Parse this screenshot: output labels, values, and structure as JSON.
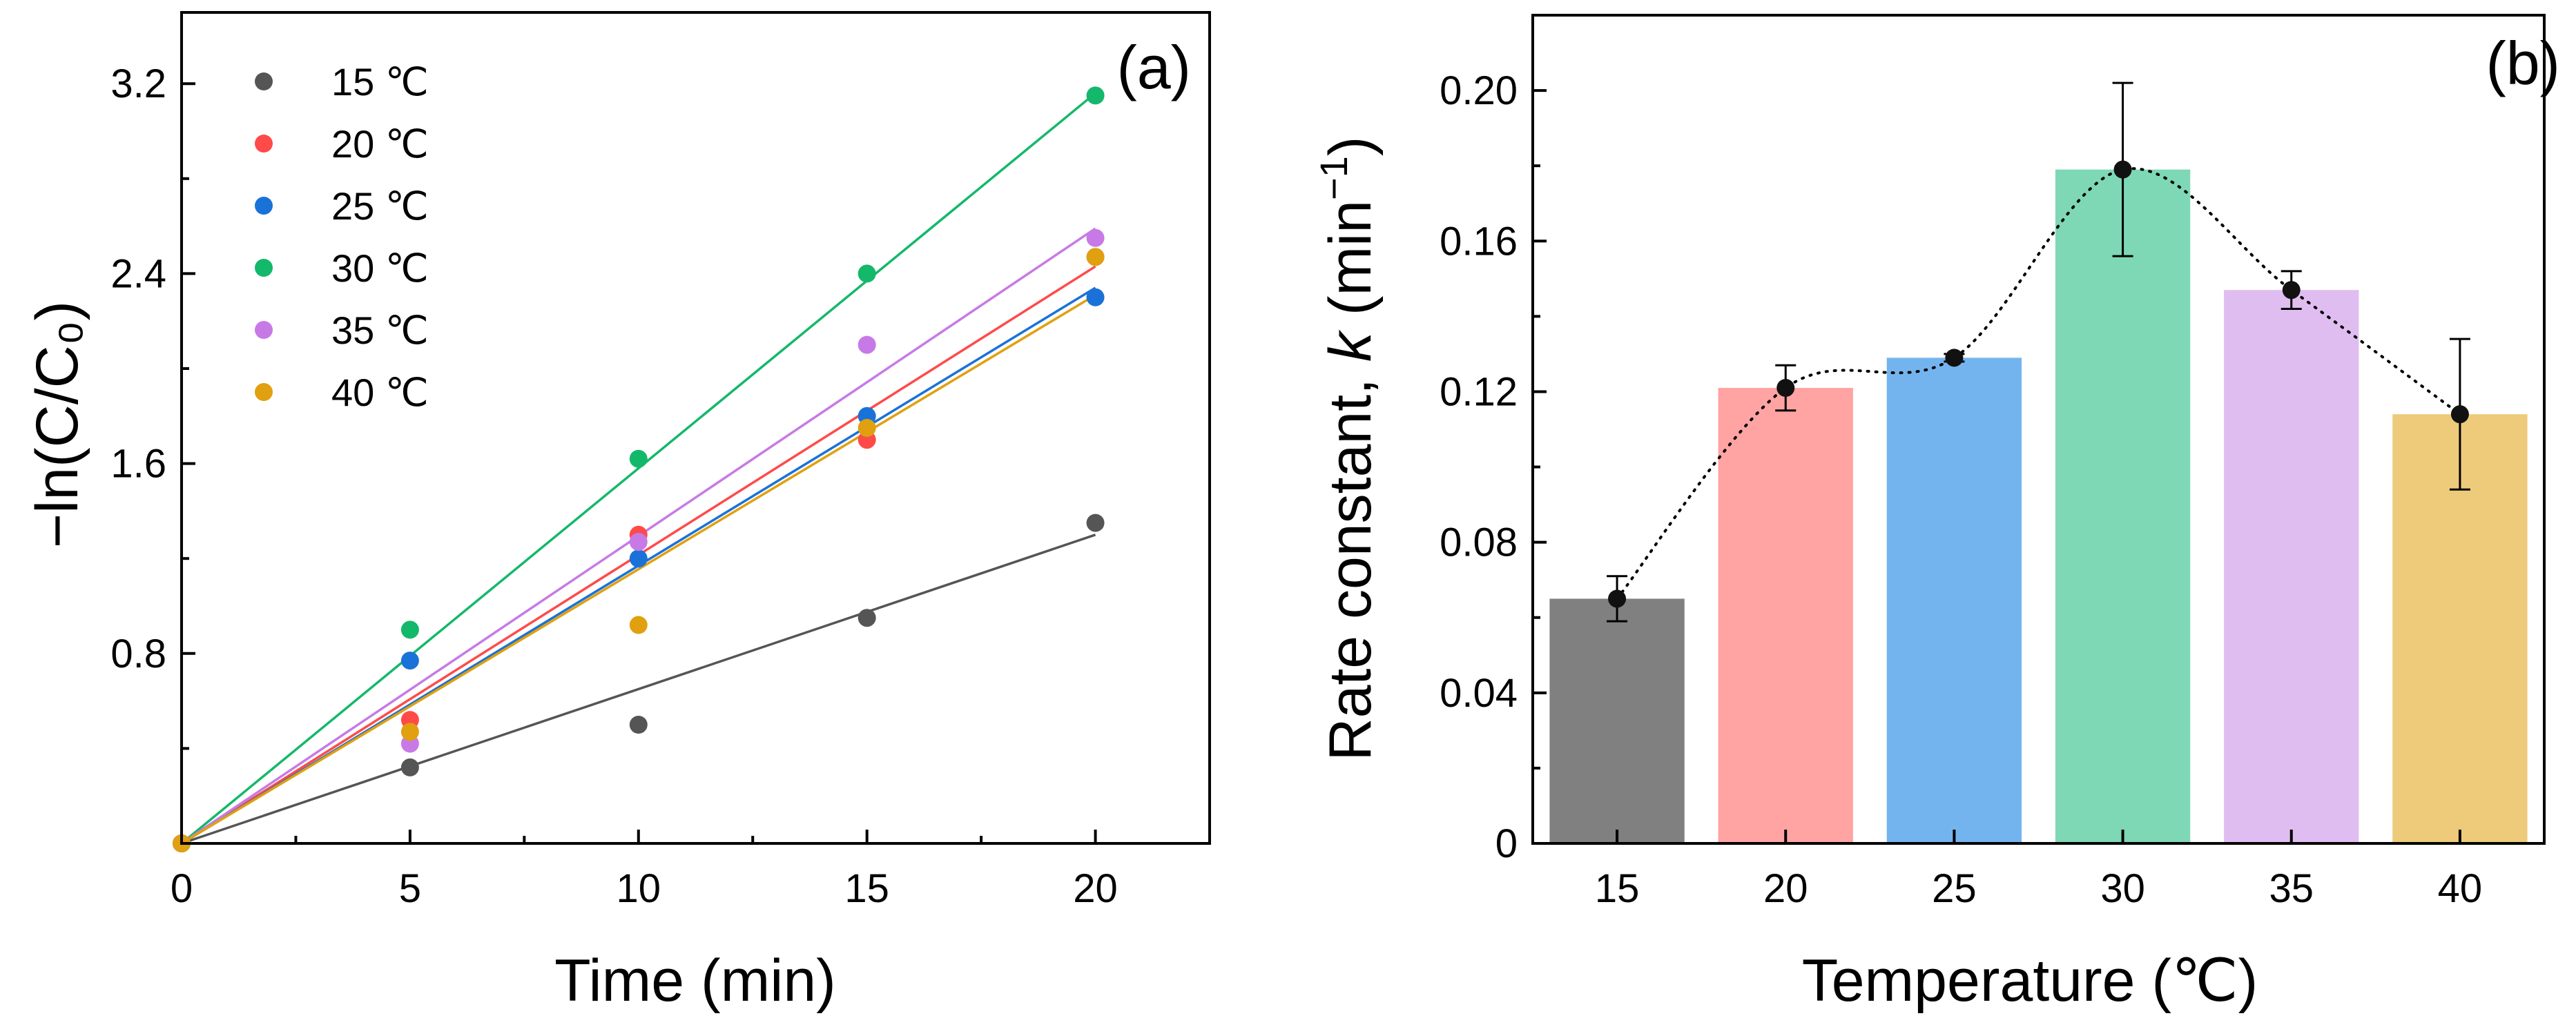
{
  "chart_data": [
    {
      "panel": "(a)",
      "type": "scatter",
      "xlabel": "Time (min)",
      "ylabel": "−ln(C/C₀)",
      "xlim": [
        0,
        22.5
      ],
      "ylim": [
        0,
        3.5
      ],
      "xticks": [
        0,
        5,
        10,
        15,
        20
      ],
      "xtick_labels": [
        "0",
        "5",
        "10",
        "15",
        "20"
      ],
      "yticks": [
        0.8,
        1.6,
        2.4,
        3.2
      ],
      "ytick_labels": [
        "0.8",
        "1.6",
        "2.4",
        "3.2"
      ],
      "legend_position": "top-left",
      "fit_lines": true,
      "series": [
        {
          "name": "15 ℃",
          "color": "#555555",
          "x": [
            0,
            5,
            10,
            15,
            20
          ],
          "y": [
            0,
            0.32,
            0.5,
            0.95,
            1.35
          ],
          "slope": 0.065
        },
        {
          "name": "20 ℃",
          "color": "#ff4a4a",
          "x": [
            0,
            5,
            10,
            15,
            20
          ],
          "y": [
            0,
            0.52,
            1.3,
            1.7,
            2.47
          ],
          "slope": 0.1215
        },
        {
          "name": "25 ℃",
          "color": "#1a72d8",
          "x": [
            0,
            5,
            10,
            15,
            20
          ],
          "y": [
            0,
            0.77,
            1.2,
            1.8,
            2.3
          ],
          "slope": 0.117
        },
        {
          "name": "30 ℃",
          "color": "#14b86a",
          "x": [
            0,
            5,
            10,
            15,
            20
          ],
          "y": [
            0,
            0.9,
            1.62,
            2.4,
            3.15
          ],
          "slope": 0.158
        },
        {
          "name": "35 ℃",
          "color": "#c77ae6",
          "x": [
            0,
            5,
            10,
            15,
            20
          ],
          "y": [
            0,
            0.42,
            1.27,
            2.1,
            2.55
          ],
          "slope": 0.1295
        },
        {
          "name": "40 ℃",
          "color": "#e0a010",
          "x": [
            0,
            5,
            10,
            15,
            20
          ],
          "y": [
            0,
            0.47,
            0.92,
            1.75,
            2.47
          ],
          "slope": 0.1155
        }
      ]
    },
    {
      "panel": "(b)",
      "type": "bar",
      "xlabel": "Temperature (℃)",
      "ylabel_prefix": "Rate constant, ",
      "ylabel_var": "k",
      "ylabel_suffix": " (min",
      "ylabel_sup": "−1",
      "ylabel_close": ")",
      "categories": [
        "15",
        "20",
        "25",
        "30",
        "35",
        "40"
      ],
      "values": [
        0.065,
        0.121,
        0.129,
        0.179,
        0.147,
        0.114
      ],
      "errors": [
        0.006,
        0.006,
        0.001,
        0.023,
        0.005,
        0.02
      ],
      "colors": [
        "#808080",
        "#ffa3a3",
        "#74b4ee",
        "#7ed8b5",
        "#e0bdf0",
        "#eecb7a"
      ],
      "ylim": [
        0,
        0.22
      ],
      "yticks": [
        0,
        0.04,
        0.08,
        0.12,
        0.16,
        0.2
      ],
      "ytick_labels": [
        "0",
        "0.04",
        "0.08",
        "0.12",
        "0.16",
        "0.20"
      ],
      "trend_line": "dotted smooth"
    }
  ]
}
